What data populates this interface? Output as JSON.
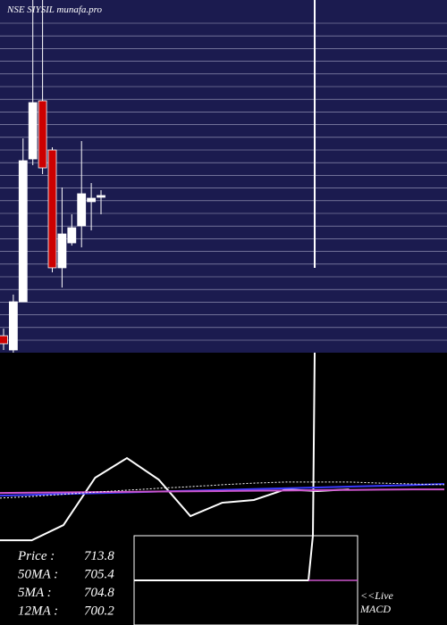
{
  "chart_data": [
    {
      "type": "candlestick",
      "title": "NSE SIYSIL munafa.pro",
      "open": [
        597.4,
        585.3,
        626.3,
        747.8,
        797.2,
        755.4,
        655.2,
        676.4,
        690.8,
        711.4,
        715.2
      ],
      "high": [
        603.5,
        632.4,
        765.3,
        883,
        883,
        757.7,
        723.5,
        700.7,
        763.0,
        727.3,
        721.2
      ],
      "low": [
        585.3,
        583.0,
        626.3,
        742.5,
        734.9,
        651.4,
        638.4,
        674.1,
        672.6,
        687.0,
        700.7
      ],
      "close": [
        590.6,
        626.3,
        746.3,
        795.7,
        740.2,
        655.2,
        684.0,
        689.3,
        718.2,
        714.4,
        716.7
      ],
      "up_color": "#ffffff",
      "down_color": "#cc0000",
      "ylim": [
        583,
        883
      ]
    },
    {
      "type": "line",
      "x": [
        0,
        1,
        2,
        3,
        4,
        5,
        6,
        7,
        8,
        9,
        10,
        11,
        12,
        13,
        14
      ],
      "xlim": [
        0,
        14
      ],
      "ylim": [
        0,
        100
      ],
      "series": [
        {
          "color": "#ffffff",
          "values": [
            31.1,
            31.1,
            36.7,
            54.1,
            61.3,
            53.4,
            40.0,
            44.9,
            45.9,
            49.8,
            49.2,
            49.8,
            null,
            null,
            null
          ]
        },
        {
          "color": "#3a3aff",
          "values": [
            47.5,
            47.8,
            48.1,
            48.4,
            48.7,
            49.0,
            49.3,
            49.6,
            49.9,
            50.2,
            50.5,
            50.8,
            51.1,
            51.4,
            51.8
          ]
        },
        {
          "color": "#cc55cc",
          "values": [
            48.5,
            48.6,
            48.7,
            48.8,
            48.9,
            49.0,
            49.1,
            49.2,
            49.3,
            49.4,
            49.5,
            49.6,
            49.7,
            49.8,
            49.8
          ]
        },
        {
          "color": "#ffffff",
          "dashed": true,
          "values": [
            46.6,
            47.2,
            48.0,
            48.8,
            49.5,
            50.2,
            50.8,
            51.5,
            52.1,
            52.5,
            52.5,
            52.5,
            52.1,
            51.8,
            51.5
          ]
        }
      ]
    }
  ],
  "stats": [
    {
      "label": "Price :",
      "value": 713.8
    },
    {
      "label": "50MA :",
      "value": 705.4
    },
    {
      "label": "5MA :",
      "value": 704.8
    },
    {
      "label": "12MA :",
      "value": 700.2
    }
  ],
  "links": [
    "<<Live",
    "MACD"
  ]
}
